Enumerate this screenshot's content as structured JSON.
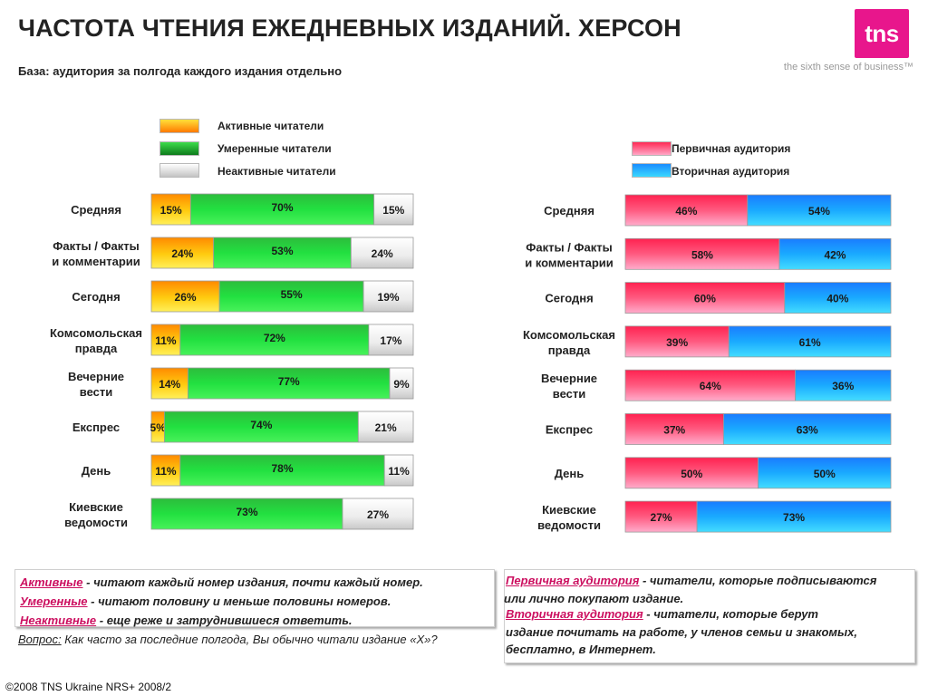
{
  "header": {
    "title": "ЧАСТОТА ЧТЕНИЯ ЕЖЕДНЕВНЫХ ИЗДАНИЙ. ХЕРСОН",
    "subtitle": "База: аудитория за полгода каждого издания отдельно"
  },
  "logo": {
    "text": "tns",
    "slogan": "the sixth sense of business™",
    "color": "#e8168c"
  },
  "colors": {
    "active": "#ffc000",
    "moderate": "#22c43a",
    "inactive": "#e6e6e6",
    "primary": "#ff3b66",
    "secondary": "#1aa8ff"
  },
  "chart_data": [
    {
      "type": "bar",
      "orientation": "horizontal",
      "stacked": true,
      "title": "",
      "categories": [
        "Средняя",
        "Факты / Факты и комментарии",
        "Сегодня",
        "Комсомольская правда",
        "Вечерние вести",
        "Експрес",
        "День",
        "Киевские ведомости"
      ],
      "series": [
        {
          "name": "Активные читатели",
          "values": [
            15,
            24,
            26,
            11,
            14,
            5,
            11,
            0
          ]
        },
        {
          "name": "Умеренные читатели",
          "values": [
            70,
            53,
            55,
            72,
            77,
            74,
            78,
            73
          ]
        },
        {
          "name": "Неактивные читатели",
          "values": [
            15,
            24,
            19,
            17,
            9,
            21,
            11,
            27
          ]
        }
      ],
      "data_labels": [
        [
          "15%",
          "70%",
          "15%"
        ],
        [
          "24%",
          "53%",
          "24%"
        ],
        [
          "26%",
          "55%",
          "19%"
        ],
        [
          "11%",
          "72%",
          "17%"
        ],
        [
          "14%",
          "77%",
          "9%"
        ],
        [
          "5%",
          "74%",
          "21%"
        ],
        [
          "11%",
          "78%",
          "11%"
        ],
        [
          "",
          "73%",
          "27%"
        ]
      ],
      "legend": "top"
    },
    {
      "type": "bar",
      "orientation": "horizontal",
      "stacked": true,
      "title": "",
      "categories": [
        "Средняя",
        "Факты / Факты и комментарии",
        "Сегодня",
        "Комсомольская правда",
        "Вечерние вести",
        "Експрес",
        "День",
        "Киевские ведомости"
      ],
      "series": [
        {
          "name": "Первичная аудитория",
          "values": [
            46,
            58,
            60,
            39,
            64,
            37,
            50,
            27
          ]
        },
        {
          "name": "Вторичная аудитория",
          "values": [
            54,
            42,
            40,
            61,
            36,
            63,
            50,
            73
          ]
        }
      ],
      "data_labels": [
        [
          "46%",
          "54%"
        ],
        [
          "58%",
          "42%"
        ],
        [
          "60%",
          "40%"
        ],
        [
          "39%",
          "61%"
        ],
        [
          "64%",
          "36%"
        ],
        [
          "37%",
          "63%"
        ],
        [
          "50%",
          "50%"
        ],
        [
          "27%",
          "73%"
        ]
      ],
      "legend": "top-right"
    }
  ],
  "left_labels": [
    [
      "Средняя"
    ],
    [
      "Факты / Факты",
      "и комментарии"
    ],
    [
      "Сегодня"
    ],
    [
      "Комсомольская",
      "правда"
    ],
    [
      "Вечерние",
      "вести"
    ],
    [
      "Експрес"
    ],
    [
      "День"
    ],
    [
      "Киевские",
      "ведомости"
    ]
  ],
  "definitions_left": [
    {
      "term": "Активные",
      "text": " - читают каждый номер издания, почти каждый номер."
    },
    {
      "term": "Умеренные",
      "text": " - читают половину и меньше  половины номеров."
    },
    {
      "term": "Неактивные",
      "text": " - еще реже и затруднившиеся ответить."
    }
  ],
  "question": {
    "label": "Вопрос:",
    "text": " Как часто за последние полгода, Вы обычно читали издание «Х»?"
  },
  "definitions_right": {
    "primary_term": "Первичная аудитория",
    "primary_text": " - читатели, которые подписываются",
    "primary_text2": "или лично покупают издание.",
    "secondary_term": "Вторичная аудитория",
    "secondary_text": " - читатели, которые берут",
    "secondary_text2": "издание почитать на работе, у членов семьи и знакомых,",
    "secondary_text3": "бесплатно, в Интернет."
  },
  "footer": "©2008 TNS Ukraine  NRS+ 2008/2"
}
